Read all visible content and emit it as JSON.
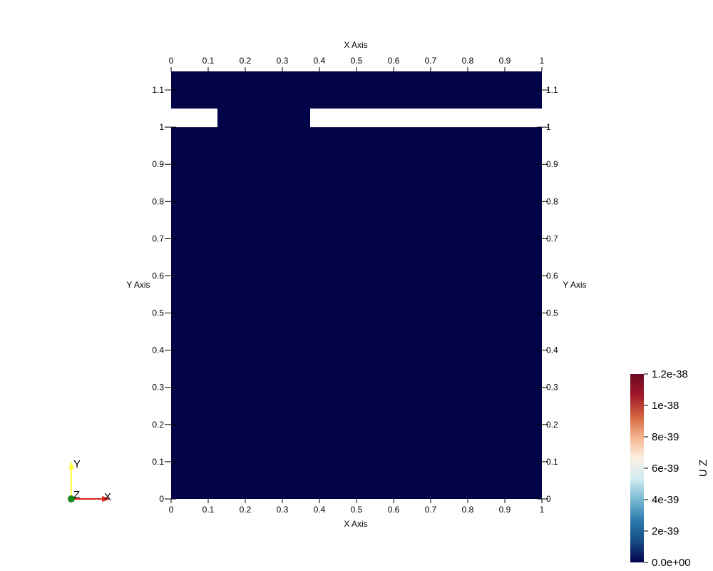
{
  "plot": {
    "field_color": "#030447",
    "gap_color": "#ffffff",
    "x_axis_title": "X Axis",
    "y_axis_title": "Y Axis",
    "x_range": [
      0,
      1
    ],
    "y_range": [
      0,
      1.15
    ],
    "x_ticks": [
      {
        "value": 0,
        "label": "0"
      },
      {
        "value": 0.1,
        "label": "0.1"
      },
      {
        "value": 0.2,
        "label": "0.2"
      },
      {
        "value": 0.3,
        "label": "0.3"
      },
      {
        "value": 0.4,
        "label": "0.4"
      },
      {
        "value": 0.5,
        "label": "0.5"
      },
      {
        "value": 0.6,
        "label": "0.6"
      },
      {
        "value": 0.7,
        "label": "0.7"
      },
      {
        "value": 0.8,
        "label": "0.8"
      },
      {
        "value": 0.9,
        "label": "0.9"
      },
      {
        "value": 1,
        "label": "1"
      }
    ],
    "y_ticks": [
      {
        "value": 0,
        "label": "0"
      },
      {
        "value": 0.1,
        "label": "0.1"
      },
      {
        "value": 0.2,
        "label": "0.2"
      },
      {
        "value": 0.3,
        "label": "0.3"
      },
      {
        "value": 0.4,
        "label": "0.4"
      },
      {
        "value": 0.5,
        "label": "0.5"
      },
      {
        "value": 0.6,
        "label": "0.6"
      },
      {
        "value": 0.7,
        "label": "0.7"
      },
      {
        "value": 0.8,
        "label": "0.8"
      },
      {
        "value": 0.9,
        "label": "0.9"
      },
      {
        "value": 1,
        "label": "1"
      },
      {
        "value": 1.1,
        "label": "1.1"
      }
    ],
    "gaps": [
      {
        "x0": 0,
        "x1": 0.125,
        "y0": 1,
        "y1": 1.05
      },
      {
        "x0": 0.375,
        "x1": 1,
        "y0": 1,
        "y1": 1.05
      }
    ]
  },
  "orientation_axes": {
    "x_label": "X",
    "y_label": "Y",
    "z_label": "Z",
    "x_color": "#e0231d",
    "y_color": "#ffff3f",
    "z_color": "#1a8a1a"
  },
  "color_legend": {
    "title": "U Z",
    "labels": [
      "1.2e-38",
      "1e-38",
      "8e-39",
      "6e-39",
      "4e-39",
      "2e-39",
      "0.0e+00"
    ],
    "label_values": [
      1.2e-38,
      1e-38,
      8e-39,
      6e-39,
      4e-39,
      2e-39,
      0
    ],
    "range": [
      0,
      1.2e-38
    ],
    "colormap": [
      "#03044c",
      "#164a84",
      "#2d7aad",
      "#77b9d2",
      "#d2ecf0",
      "#fbf0e2",
      "#f3b38d",
      "#d2613d",
      "#a11729",
      "#6b0a24"
    ]
  }
}
